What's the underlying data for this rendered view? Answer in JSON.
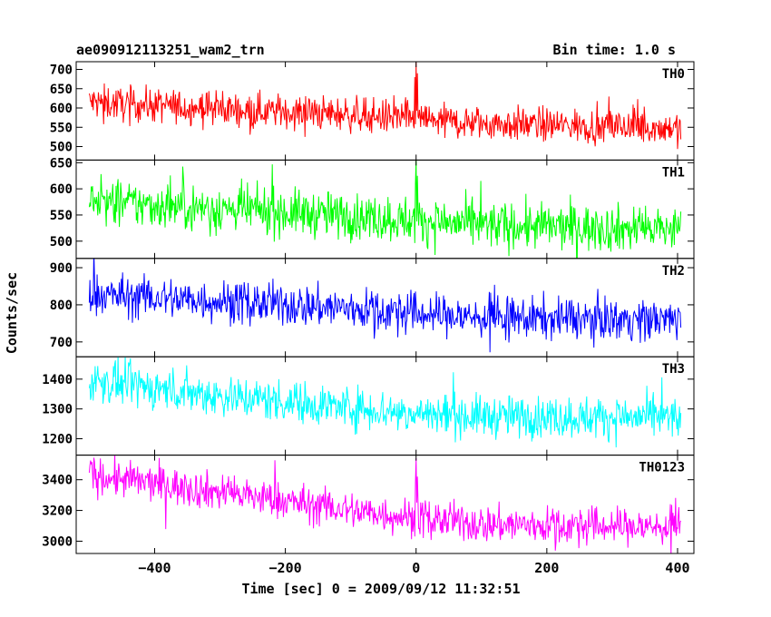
{
  "header": {
    "title": "ae090912113251_wam2_trn",
    "bin_time": "Bin time: 1.0 s"
  },
  "chart_data": {
    "type": "line",
    "xlabel": "Time [sec] 0 = 2009/09/12 11:32:51",
    "ylabel": "Counts/sec",
    "xlim": [
      -520,
      425
    ],
    "xticks": [
      -400,
      -200,
      0,
      200,
      400
    ],
    "xtick_labels": [
      "−400",
      "−200",
      "0",
      "200",
      "400"
    ],
    "x_start": -500,
    "x_end": 405,
    "bin_time": 1.0,
    "panels": [
      {
        "label": "TH0",
        "color": "#ff0000",
        "ylim": [
          465,
          720
        ],
        "yticks": [
          500,
          550,
          600,
          650,
          700
        ],
        "trend": [
          [
            -500,
            615
          ],
          [
            -300,
            598
          ],
          [
            -100,
            583
          ],
          [
            -2,
            572
          ],
          [
            100,
            560
          ],
          [
            405,
            548
          ]
        ],
        "spread": 22,
        "spikes": [
          {
            "x": 0,
            "y": 718
          },
          {
            "x": 2,
            "y": 690
          },
          {
            "x": -2,
            "y": 680
          }
        ]
      },
      {
        "label": "TH1",
        "color": "#00ff00",
        "ylim": [
          467,
          655
        ],
        "yticks": [
          500,
          550,
          600,
          650
        ],
        "trend": [
          [
            -500,
            575
          ],
          [
            -300,
            562
          ],
          [
            -100,
            548
          ],
          [
            -2,
            540
          ],
          [
            100,
            530
          ],
          [
            405,
            522
          ]
        ],
        "spread": 22,
        "spikes": [
          {
            "x": 0,
            "y": 655
          },
          {
            "x": 2,
            "y": 625
          },
          {
            "x": -1,
            "y": 610
          }
        ]
      },
      {
        "label": "TH2",
        "color": "#0000ff",
        "ylim": [
          660,
          925
        ],
        "yticks": [
          700,
          800,
          900
        ],
        "trend": [
          [
            -500,
            828
          ],
          [
            -300,
            810
          ],
          [
            -100,
            790
          ],
          [
            -2,
            777
          ],
          [
            100,
            765
          ],
          [
            405,
            760
          ]
        ],
        "spread": 28,
        "spikes": []
      },
      {
        "label": "TH3",
        "color": "#00ffff",
        "ylim": [
          1145,
          1475
        ],
        "yticks": [
          1200,
          1300,
          1400
        ],
        "trend": [
          [
            -500,
            1395
          ],
          [
            -300,
            1345
          ],
          [
            -100,
            1305
          ],
          [
            -2,
            1285
          ],
          [
            100,
            1275
          ],
          [
            405,
            1270
          ]
        ],
        "spread": 35,
        "spikes": []
      },
      {
        "label": "TH0123",
        "color": "#ff00ff",
        "ylim": [
          2920,
          3560
        ],
        "yticks": [
          3000,
          3200,
          3400
        ],
        "trend": [
          [
            -500,
            3430
          ],
          [
            -300,
            3320
          ],
          [
            -100,
            3200
          ],
          [
            -2,
            3155
          ],
          [
            100,
            3110
          ],
          [
            405,
            3090
          ]
        ],
        "spread": 60,
        "spikes": [
          {
            "x": 0,
            "y": 3540
          },
          {
            "x": 2,
            "y": 3420
          },
          {
            "x": -1,
            "y": 3380
          }
        ]
      }
    ]
  }
}
